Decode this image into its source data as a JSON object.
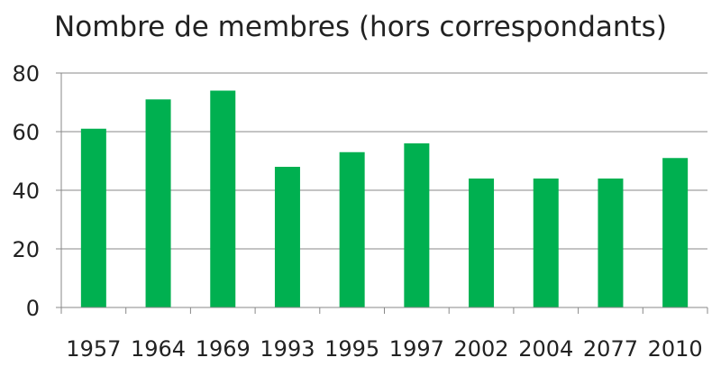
{
  "chart_data": {
    "type": "bar",
    "title": "Nombre de membres (hors correspondants)",
    "categories": [
      "1957",
      "1964",
      "1969",
      "1993",
      "1995",
      "1997",
      "2002",
      "2004",
      "2077",
      "2010"
    ],
    "values": [
      61,
      71,
      74,
      48,
      53,
      56,
      44,
      44,
      44,
      51
    ],
    "xlabel": "",
    "ylabel": "",
    "ylim": [
      0,
      80
    ],
    "yticks": [
      0,
      20,
      40,
      60,
      80
    ],
    "grid": true,
    "legend": "none",
    "colors": {
      "bar": "#00b050",
      "grid": "#888888",
      "axis": "#888888"
    }
  }
}
